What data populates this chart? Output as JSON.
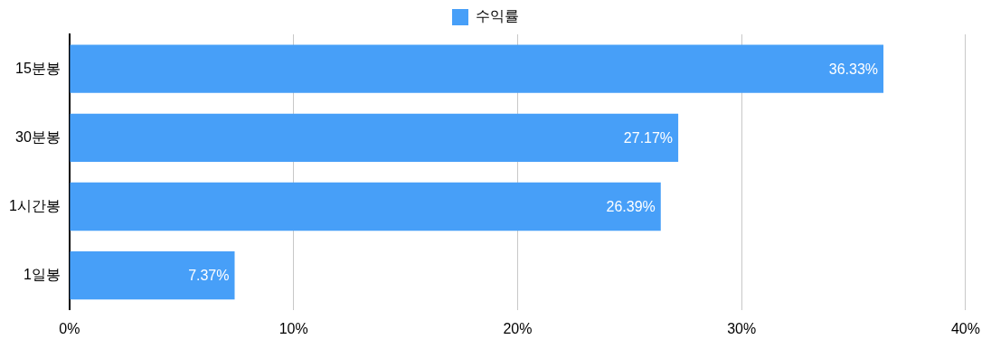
{
  "chart_data": {
    "type": "bar",
    "orientation": "horizontal",
    "categories": [
      "15분봉",
      "30분봉",
      "1시간봉",
      "1일봉"
    ],
    "series": [
      {
        "name": "수익률",
        "color": "#479ff8",
        "values": [
          36.33,
          27.17,
          26.39,
          7.37
        ],
        "value_labels": [
          "36.33%",
          "27.17%",
          "26.39%",
          "7.37%"
        ]
      }
    ],
    "xlim": [
      0,
      40
    ],
    "xticks": [
      {
        "value": 0,
        "label": "0%"
      },
      {
        "value": 10,
        "label": "10%"
      },
      {
        "value": 20,
        "label": "20%"
      },
      {
        "value": 30,
        "label": "30%"
      },
      {
        "value": 40,
        "label": "40%"
      }
    ],
    "grid": "x",
    "legend": "top"
  }
}
